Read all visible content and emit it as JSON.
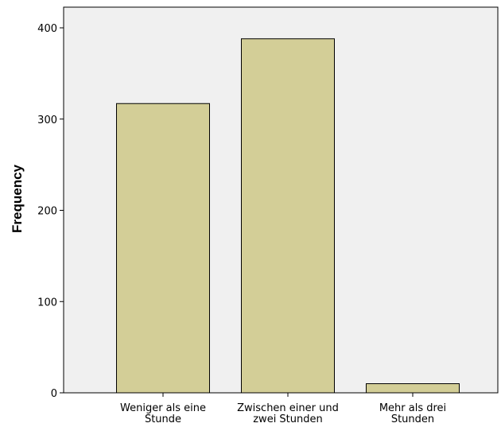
{
  "chart_data": {
    "type": "bar",
    "categories": [
      [
        "Weniger als eine",
        "Stunde"
      ],
      [
        "Zwischen einer und",
        "zwei Stunden"
      ],
      [
        "Mehr als drei",
        "Stunden"
      ]
    ],
    "values": [
      317,
      388,
      10
    ],
    "title": "",
    "xlabel": "",
    "ylabel": "Frequency",
    "ylim": [
      0,
      400
    ],
    "yticks": [
      "0",
      "100",
      "200",
      "300",
      "400"
    ],
    "grid": false,
    "colors": {
      "plot_background": "#f0f0f0",
      "bar_fill": "#d3ce97",
      "bar_stroke": "#000000",
      "axis": "#000000"
    }
  }
}
